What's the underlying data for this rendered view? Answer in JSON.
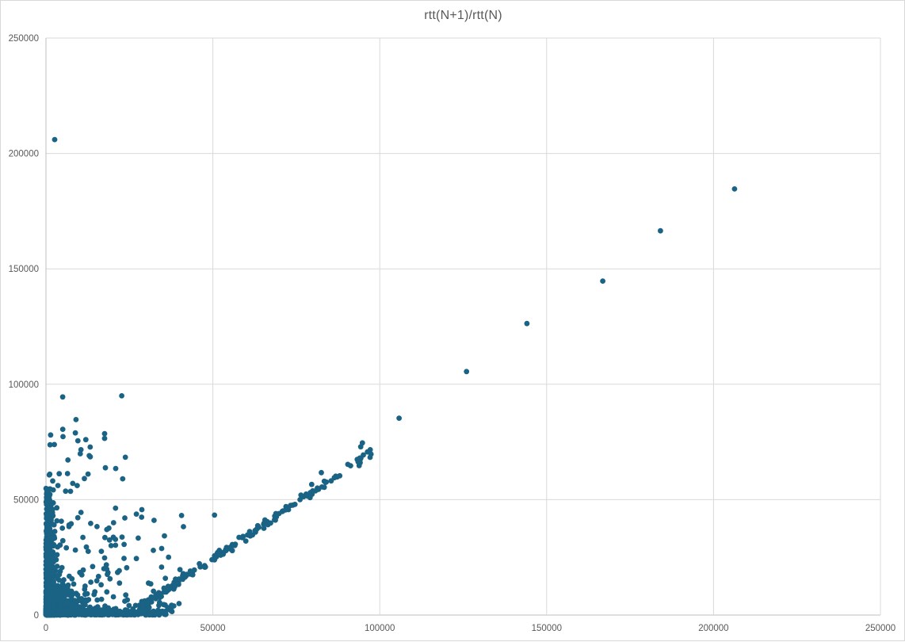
{
  "window": {
    "background_color": "#FFFFFF",
    "border_color": "#D9D9D9"
  },
  "chart_data": {
    "type": "scatter",
    "title": "rtt(N+1)/rtt(N)",
    "xlabel": "",
    "ylabel": "",
    "xlim": [
      0,
      250000
    ],
    "ylim": [
      0,
      250000
    ],
    "x_ticks": [
      0,
      50000,
      100000,
      150000,
      200000,
      250000
    ],
    "y_ticks": [
      0,
      50000,
      100000,
      150000,
      200000,
      250000
    ],
    "tick_label_format": "plain-integer",
    "grid": true,
    "legend": "none",
    "marker_color": "#1B6385",
    "marker_radius": 3.4,
    "grid_color": "#D9D9D9",
    "axis_color": "#BFBFBF",
    "text_color": "#595959",
    "title_color": "#595959",
    "notable_points": [
      [
        2600,
        206000
      ],
      [
        5000,
        94500
      ],
      [
        22700,
        95000
      ],
      [
        8800,
        78900
      ],
      [
        17800,
        63800
      ],
      [
        12600,
        61100
      ],
      [
        20900,
        63500
      ],
      [
        35500,
        34300
      ],
      [
        50500,
        43300
      ],
      [
        79600,
        56600
      ],
      [
        82500,
        61700
      ],
      [
        94300,
        72900
      ],
      [
        94800,
        74600
      ],
      [
        105800,
        85300
      ],
      [
        126000,
        105500
      ],
      [
        144100,
        126300
      ],
      [
        166800,
        144700
      ],
      [
        184100,
        166500
      ],
      [
        206300,
        184600
      ]
    ],
    "dense_cloud": {
      "description": "Very dense cluster of RTT sample pairs hugging both axes near the origin, a moderate scatter wedge between the arms, a sparse column of points above the origin up to ~95000, and a dense diagonal band y~0.97x-24000 from x~28000 to x~98000.",
      "seed": 1337,
      "groups": [
        {
          "name": "corner-blob",
          "kind": "exp2",
          "count": 1000,
          "x_mean": 3200,
          "x_cap": 22000,
          "y_mean": 3500,
          "y_cap": 26000
        },
        {
          "name": "left-arm",
          "kind": "arm-vertical",
          "count": 380,
          "x_mean": 1000,
          "x_cap": 3500,
          "y_max": 55000,
          "y_pow": 1.6
        },
        {
          "name": "bottom-arm",
          "kind": "arm-horizontal",
          "count": 380,
          "y_mean": 1000,
          "y_cap": 3500,
          "x_max": 36000,
          "x_pow": 1.4
        },
        {
          "name": "wedge",
          "kind": "wedge",
          "count": 150,
          "x_min": 1500,
          "x_span": 40000,
          "x_pow": 1.5,
          "y_min": 1500,
          "y_span": 46000,
          "y_pow": 1.7
        },
        {
          "name": "upper-left-column",
          "kind": "band-vertical",
          "count": 30,
          "x_mean": 7000,
          "x_cap": 24000,
          "y_min": 50000,
          "y_span": 35000
        },
        {
          "name": "diagonal-band",
          "kind": "diagonal",
          "count": 190,
          "x_min": 28000,
          "x_span": 70000,
          "x_pow": 1.6,
          "slope": 0.97,
          "intercept": -24000,
          "noise": 2800,
          "y_min": 500
        }
      ]
    }
  }
}
